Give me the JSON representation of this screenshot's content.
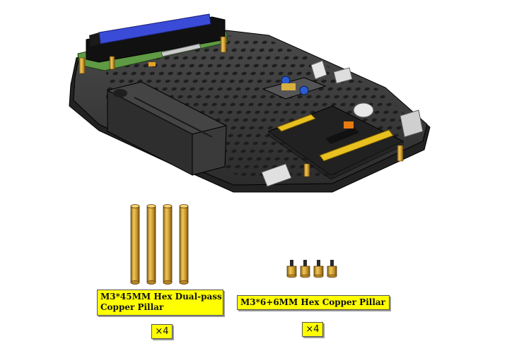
{
  "parts": [
    {
      "name_line1": "M3*45MM Hex Dual-pass",
      "name_line2": "Copper Pillar",
      "quantity": "×4"
    },
    {
      "name": "M3*6+6MM Hex Copper Pillar",
      "quantity": "×4"
    }
  ],
  "colors": {
    "label_background": "#ffff00",
    "brass": "#d4a23a",
    "plate": "#3a3a3a",
    "lcd_screen": "#3a4bd8",
    "pcb": "#4a8a3a"
  }
}
